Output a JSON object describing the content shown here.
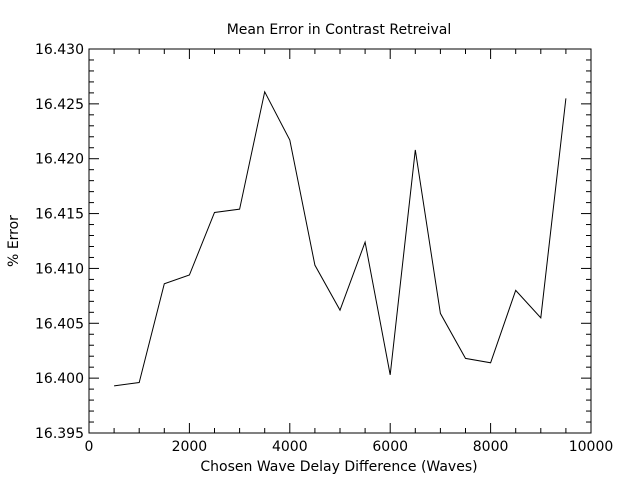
{
  "chart_data": {
    "type": "line",
    "title": "Mean Error in Contrast Retreival",
    "xlabel": "Chosen Wave Delay Difference (Waves)",
    "ylabel": "% Error",
    "xlim": [
      0,
      10000
    ],
    "ylim": [
      16.395,
      16.43
    ],
    "xticks": [
      0,
      2000,
      4000,
      6000,
      8000,
      10000
    ],
    "xtick_labels": [
      "0",
      "2000",
      "4000",
      "6000",
      "8000",
      "10000"
    ],
    "yticks": [
      16.395,
      16.4,
      16.405,
      16.41,
      16.415,
      16.42,
      16.425,
      16.43
    ],
    "ytick_labels": [
      "16.395",
      "16.400",
      "16.405",
      "16.410",
      "16.415",
      "16.420",
      "16.425",
      "16.430"
    ],
    "grid": false,
    "series": [
      {
        "x": [
          500,
          1000,
          1500,
          2000,
          2500,
          3000,
          3500,
          4000,
          4500,
          5000,
          5500,
          6000,
          6500,
          7000,
          7500,
          8000,
          8500,
          9000,
          9500
        ],
        "y": [
          16.3993,
          16.3996,
          16.4086,
          16.4094,
          16.4151,
          16.4154,
          16.4261,
          16.4217,
          16.4103,
          16.4062,
          16.4124,
          16.4003,
          16.4208,
          16.4059,
          16.4018,
          16.4014,
          16.408,
          16.4055,
          16.4255
        ]
      }
    ],
    "line_color": "#000000"
  }
}
